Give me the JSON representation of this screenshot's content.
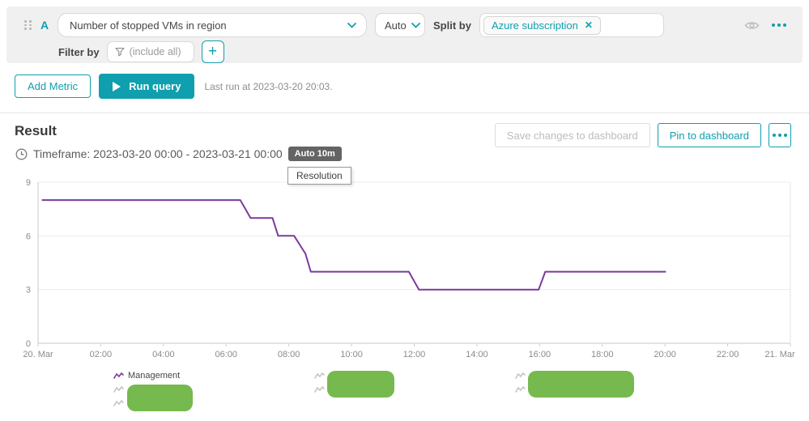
{
  "query_builder": {
    "metric_letter": "A",
    "metric_select_value": "Number of stopped VMs in region",
    "aggregation_select_value": "Auto",
    "split_by_label": "Split by",
    "split_by_tag": "Azure subscription",
    "close_icon_glyph": "✕",
    "filter_by_label": "Filter by",
    "filter_placeholder": "(include all)",
    "plus_icon_glyph": "+"
  },
  "actions": {
    "add_metric_label": "Add Metric",
    "run_query_label": "Run query",
    "last_run_text": "Last run at 2023-03-20 20:03."
  },
  "result": {
    "title": "Result",
    "timeframe_text": "Timeframe: 2023-03-20 00:00 - 2023-03-21 00:00",
    "resolution_badge": "Auto 10m",
    "resolution_tooltip": "Resolution",
    "save_button_label": "Save changes to dashboard",
    "pin_button_label": "Pin to dashboard"
  },
  "legend": {
    "items": [
      {
        "label": "Management",
        "redacted": false
      },
      {
        "label": "",
        "redacted": true
      },
      {
        "label": "",
        "redacted": true
      },
      {
        "label": "",
        "redacted": true
      }
    ]
  },
  "chart_data": {
    "type": "line",
    "title": "",
    "xlabel": "",
    "ylabel": "",
    "x_ticks": [
      "20. Mar",
      "02:00",
      "04:00",
      "06:00",
      "08:00",
      "10:00",
      "12:00",
      "14:00",
      "16:00",
      "18:00",
      "20:00",
      "22:00",
      "21. Mar"
    ],
    "y_ticks": [
      9,
      6,
      3,
      0
    ],
    "ylim": [
      0,
      9
    ],
    "xlim_hours": [
      0,
      24
    ],
    "grid": true,
    "legend_position": "bottom",
    "series": [
      {
        "name": "Management",
        "color": "#7b3a9c",
        "points_format": "[hour_of_2023-03-20, stopped_vm_count]",
        "points": [
          [
            0.12,
            8
          ],
          [
            6.45,
            8
          ],
          [
            6.78,
            7
          ],
          [
            7.48,
            7
          ],
          [
            7.66,
            6
          ],
          [
            8.17,
            6
          ],
          [
            8.53,
            5
          ],
          [
            8.7,
            4
          ],
          [
            11.83,
            4
          ],
          [
            12.15,
            3
          ],
          [
            15.97,
            3
          ],
          [
            16.18,
            4
          ],
          [
            20.03,
            4
          ]
        ]
      }
    ]
  },
  "colors": {
    "accent_teal": "#0f9fae",
    "series_purple": "#7b3a9c",
    "redaction_green": "#76b94e",
    "badge_bg": "#646464",
    "panel_bg": "#f0f0f0"
  }
}
